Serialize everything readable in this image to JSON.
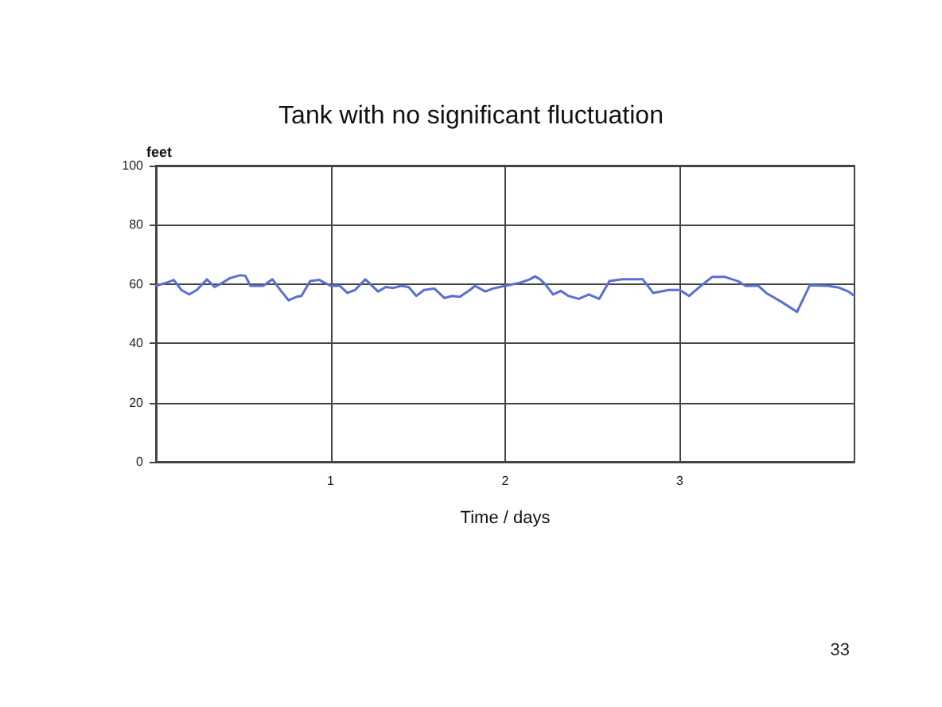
{
  "chart_data": {
    "type": "line",
    "title": "Tank with no significant fluctuation",
    "xlabel": "Time / days",
    "ylabel": "feet",
    "annotations": [
      "33"
    ],
    "x": [
      0,
      0.058,
      0.102,
      0.146,
      0.19,
      0.234,
      0.292,
      0.336,
      0.38,
      0.424,
      0.482,
      0.512,
      0.541,
      0.614,
      0.667,
      0.716,
      0.76,
      0.804,
      0.833,
      0.883,
      0.936,
      1.0,
      1.053,
      1.096,
      1.14,
      1.199,
      1.272,
      1.316,
      1.36,
      1.404,
      1.447,
      1.491,
      1.535,
      1.594,
      1.652,
      1.696,
      1.74,
      1.798,
      1.827,
      1.886,
      1.93,
      2.0,
      2.082,
      2.141,
      2.171,
      2.2,
      2.229,
      2.274,
      2.318,
      2.362,
      2.421,
      2.479,
      2.538,
      2.597,
      2.671,
      2.788,
      2.847,
      2.935,
      3.0,
      3.053,
      3.112,
      3.185,
      3.259,
      3.332,
      3.376,
      3.45,
      3.494,
      3.582,
      3.671,
      3.744,
      3.847,
      3.906,
      3.965,
      4.0
    ],
    "series": [
      {
        "color": "#5a6fd0",
        "values": [
          59.4,
          60.4,
          61.4,
          58,
          56.5,
          58,
          61.6,
          59,
          60.4,
          62,
          63,
          62.8,
          59.4,
          59.4,
          61.6,
          57.7,
          54.5,
          55.7,
          56,
          61,
          61.4,
          59.4,
          59.4,
          57,
          58,
          61.6,
          57.5,
          59,
          58.7,
          59.4,
          59,
          56,
          58,
          58.5,
          55.3,
          56,
          55.7,
          58,
          59.4,
          57.5,
          58.5,
          59.4,
          60.4,
          61.6,
          62.6,
          61.6,
          60,
          56.5,
          57.7,
          56,
          55,
          56.5,
          55,
          61,
          61.6,
          61.6,
          57,
          58,
          58,
          56,
          59,
          62.4,
          62.4,
          61,
          59.4,
          59.4,
          57,
          54,
          50.6,
          59.6,
          59.4,
          58.9,
          57.5,
          56
        ]
      }
    ],
    "xlim": [
      0,
      4
    ],
    "xticks": [
      1,
      2,
      3
    ],
    "ylim": [
      0,
      100
    ],
    "yticks": [
      0,
      20,
      40,
      60,
      80,
      100
    ],
    "grid": true,
    "marker": "none",
    "line_style": "solid"
  }
}
